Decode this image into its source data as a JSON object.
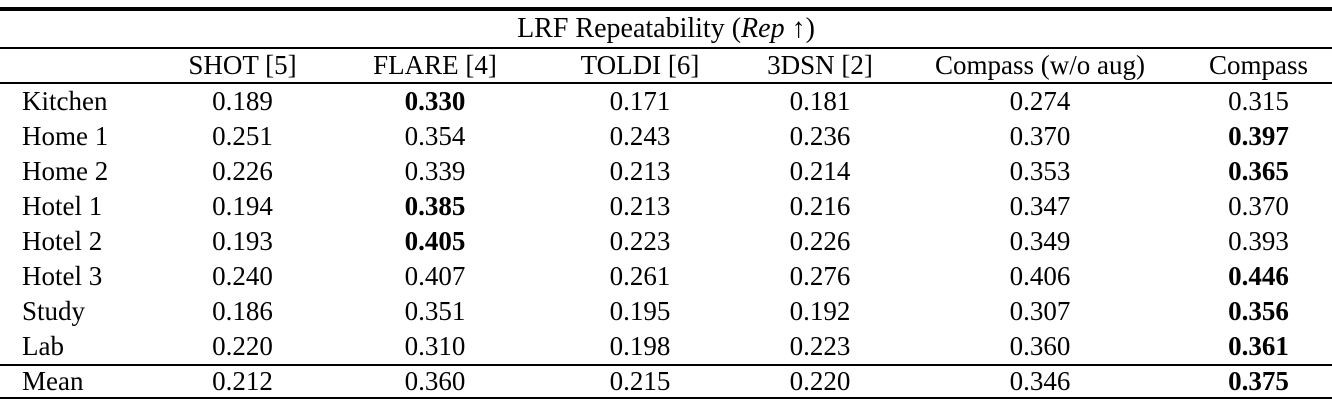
{
  "page": {
    "background_color": "#ffffff",
    "text_color": "#000000",
    "rule_color": "#000000"
  },
  "table": {
    "title": {
      "prefix": "LRF Repeatability (",
      "metric": "Rep",
      "suffix": " ↑)"
    },
    "column_headers": [
      "",
      "SHOT [5]",
      "FLARE [4]",
      "TOLDI [6]",
      "3DSN [2]",
      "Compass (w/o aug)",
      "Compass"
    ],
    "rows": [
      {
        "label": "Kitchen",
        "values": [
          "0.189",
          "0.330",
          "0.171",
          "0.181",
          "0.274",
          "0.315"
        ],
        "bold_index": 1
      },
      {
        "label": "Home 1",
        "values": [
          "0.251",
          "0.354",
          "0.243",
          "0.236",
          "0.370",
          "0.397"
        ],
        "bold_index": 5
      },
      {
        "label": "Home 2",
        "values": [
          "0.226",
          "0.339",
          "0.213",
          "0.214",
          "0.353",
          "0.365"
        ],
        "bold_index": 5
      },
      {
        "label": "Hotel 1",
        "values": [
          "0.194",
          "0.385",
          "0.213",
          "0.216",
          "0.347",
          "0.370"
        ],
        "bold_index": 1
      },
      {
        "label": "Hotel 2",
        "values": [
          "0.193",
          "0.405",
          "0.223",
          "0.226",
          "0.349",
          "0.393"
        ],
        "bold_index": 1
      },
      {
        "label": "Hotel 3",
        "values": [
          "0.240",
          "0.407",
          "0.261",
          "0.276",
          "0.406",
          "0.446"
        ],
        "bold_index": 5
      },
      {
        "label": "Study",
        "values": [
          "0.186",
          "0.351",
          "0.195",
          "0.192",
          "0.307",
          "0.356"
        ],
        "bold_index": 5
      },
      {
        "label": "Lab",
        "values": [
          "0.220",
          "0.310",
          "0.198",
          "0.223",
          "0.360",
          "0.361"
        ],
        "bold_index": 5
      }
    ],
    "summary_row": {
      "label": "Mean",
      "values": [
        "0.212",
        "0.360",
        "0.215",
        "0.220",
        "0.346",
        "0.375"
      ],
      "bold_index": 5
    }
  }
}
